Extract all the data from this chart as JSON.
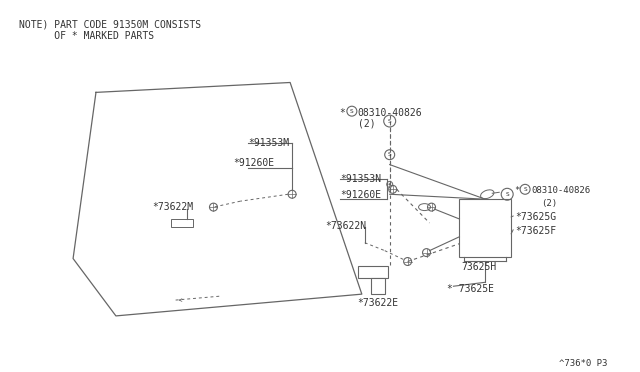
{
  "bg_color": "#ffffff",
  "line_color": "#666666",
  "text_color": "#333333",
  "title_line1": "NOTE) PART CODE 91350M CONSISTS",
  "title_line2": "      OF * MARKED PARTS",
  "footer": "^736*0 P3",
  "fig_width": 6.4,
  "fig_height": 3.72,
  "dpi": 100
}
